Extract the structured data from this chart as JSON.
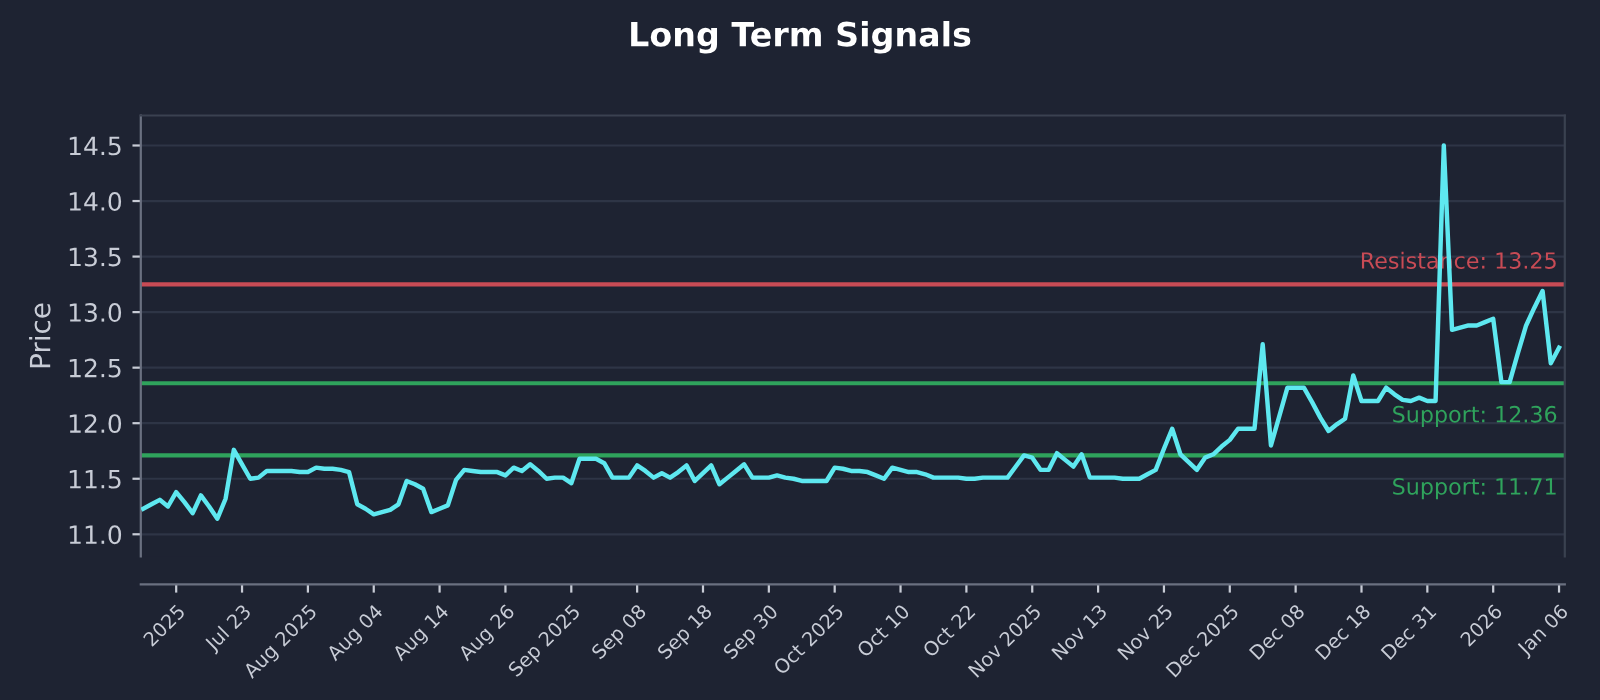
{
  "chart_data": {
    "type": "line",
    "title": "Long Term Signals",
    "ylabel": "Price",
    "categories": [
      null,
      null,
      null,
      null,
      "2025",
      null,
      null,
      null,
      null,
      null,
      null,
      null,
      "Jul 23",
      null,
      null,
      null,
      null,
      null,
      null,
      null,
      "Aug 2025",
      null,
      null,
      null,
      null,
      null,
      null,
      null,
      "Aug 04",
      null,
      null,
      null,
      null,
      null,
      null,
      null,
      "Aug 14",
      null,
      null,
      null,
      null,
      null,
      null,
      null,
      "Aug 26",
      null,
      null,
      null,
      null,
      null,
      null,
      null,
      "Sep 2025",
      null,
      null,
      null,
      null,
      null,
      null,
      null,
      "Sep 08",
      null,
      null,
      null,
      null,
      null,
      null,
      null,
      "Sep 18",
      null,
      null,
      null,
      null,
      null,
      null,
      null,
      "Sep 30",
      null,
      null,
      null,
      null,
      null,
      null,
      null,
      "Oct 2025",
      null,
      null,
      null,
      null,
      null,
      null,
      null,
      "Oct 10",
      null,
      null,
      null,
      null,
      null,
      null,
      null,
      "Oct 22",
      null,
      null,
      null,
      null,
      null,
      null,
      null,
      "Nov 2025",
      null,
      null,
      null,
      null,
      null,
      null,
      null,
      "Nov 13",
      null,
      null,
      null,
      null,
      null,
      null,
      null,
      "Nov 25",
      null,
      null,
      null,
      null,
      null,
      null,
      null,
      "Dec 2025",
      null,
      null,
      null,
      null,
      null,
      null,
      null,
      "Dec 08",
      null,
      null,
      null,
      null,
      null,
      null,
      null,
      "Dec 18",
      null,
      null,
      null,
      null,
      null,
      null,
      null,
      "Dec 31",
      null,
      null,
      null,
      null,
      null,
      null,
      null,
      "2026",
      null,
      null,
      null,
      null,
      null,
      null,
      null,
      "Jan 06"
    ],
    "series": [
      {
        "color": "#5ee8f0",
        "values": [
          11.23,
          11.27,
          11.31,
          11.25,
          11.38,
          11.29,
          11.19,
          11.35,
          11.25,
          11.14,
          11.32,
          11.76,
          11.63,
          11.5,
          11.51,
          11.57,
          11.57,
          11.57,
          11.57,
          11.56,
          11.56,
          11.6,
          11.59,
          11.59,
          11.58,
          11.56,
          11.27,
          11.23,
          11.18,
          11.2,
          11.22,
          11.27,
          11.48,
          11.45,
          11.41,
          11.2,
          11.23,
          11.26,
          11.49,
          11.58,
          11.57,
          11.56,
          11.56,
          11.56,
          11.53,
          11.6,
          11.57,
          11.63,
          11.57,
          11.5,
          11.51,
          11.51,
          11.46,
          11.68,
          11.68,
          11.68,
          11.64,
          11.51,
          11.51,
          11.51,
          11.62,
          11.57,
          11.51,
          11.55,
          11.51,
          11.56,
          11.62,
          11.48,
          11.55,
          11.62,
          11.45,
          11.51,
          11.57,
          11.63,
          11.51,
          11.51,
          11.51,
          11.53,
          11.51,
          11.5,
          11.48,
          11.48,
          11.48,
          11.48,
          11.6,
          11.59,
          11.57,
          11.57,
          11.56,
          11.53,
          11.5,
          11.6,
          11.58,
          11.56,
          11.56,
          11.54,
          11.51,
          11.51,
          11.51,
          11.51,
          11.5,
          11.5,
          11.51,
          11.51,
          11.51,
          11.51,
          11.61,
          11.71,
          11.69,
          11.58,
          11.58,
          11.73,
          11.67,
          11.61,
          11.72,
          11.51,
          11.51,
          11.51,
          11.51,
          11.5,
          11.5,
          11.5,
          11.54,
          11.58,
          11.77,
          11.95,
          11.72,
          11.65,
          11.58,
          11.69,
          11.72,
          11.79,
          11.85,
          11.95,
          11.95,
          11.95,
          12.71,
          11.8,
          12.06,
          12.32,
          12.32,
          12.32,
          12.19,
          12.05,
          11.93,
          11.99,
          12.04,
          12.43,
          12.2,
          12.2,
          12.2,
          12.32,
          12.26,
          12.21,
          12.2,
          12.23,
          12.2,
          12.2,
          14.5,
          12.84,
          12.86,
          12.88,
          12.88,
          12.91,
          12.94,
          12.37,
          12.37,
          12.63,
          12.88,
          13.04,
          13.19,
          12.54,
          12.68
        ]
      }
    ],
    "ylim": [
      10.8,
      14.77
    ],
    "yticks": [
      {
        "value": 11,
        "label": "11.0"
      },
      11.5,
      {
        "value": 12,
        "label": "12.0"
      },
      12.5,
      {
        "value": 13,
        "label": "13.0"
      },
      13.5,
      {
        "value": 14,
        "label": "14.0"
      },
      14.5
    ],
    "ref_lines": [
      {
        "axis": "y",
        "value": 13.25,
        "label": "Resistance: 13.25",
        "color": "#c84b55"
      },
      {
        "axis": "y",
        "value": 12.36,
        "label": "Support: 12.36",
        "color": "#2fa35c"
      },
      {
        "axis": "y",
        "value": 11.71,
        "label": "Support: 11.71",
        "color": "#2fa35c"
      }
    ],
    "grid": "y",
    "legend": false
  }
}
